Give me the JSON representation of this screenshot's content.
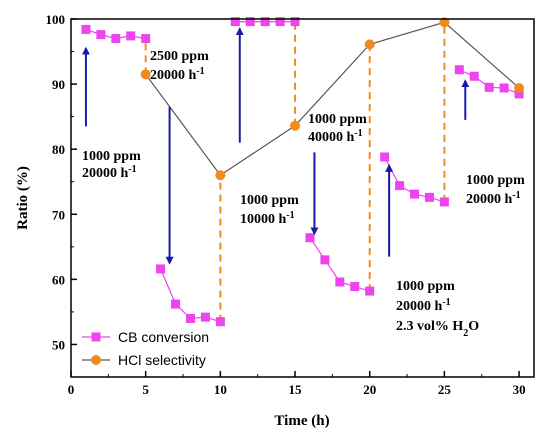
{
  "chart_data": {
    "type": "scatter",
    "title": "",
    "xlabel": "Time (h)",
    "ylabel": "Ratio (%)",
    "xlim": [
      0,
      31
    ],
    "ylim": [
      45,
      100
    ],
    "xticks": [
      0,
      5,
      10,
      15,
      20,
      25,
      30
    ],
    "yticks": [
      50,
      60,
      70,
      80,
      90,
      100
    ],
    "grid": false,
    "legend_position": "bottom-left",
    "series": [
      {
        "name": "CB conversion",
        "color": "#ee44ee",
        "marker": "square",
        "points": [
          [
            1,
            98.4
          ],
          [
            2,
            97.6
          ],
          [
            3,
            97.0
          ],
          [
            4,
            97.4
          ],
          [
            5,
            97.0
          ],
          [
            6,
            61.6
          ],
          [
            7,
            56.2
          ],
          [
            8,
            54.0
          ],
          [
            9,
            54.2
          ],
          [
            10,
            53.5
          ],
          [
            11,
            99.6
          ],
          [
            12,
            99.6
          ],
          [
            13,
            99.6
          ],
          [
            14,
            99.6
          ],
          [
            15,
            99.6
          ],
          [
            16,
            66.4
          ],
          [
            17,
            63.0
          ],
          [
            18,
            59.6
          ],
          [
            19,
            58.9
          ],
          [
            20,
            58.2
          ],
          [
            21,
            78.8
          ],
          [
            22,
            74.4
          ],
          [
            23,
            73.1
          ],
          [
            24,
            72.6
          ],
          [
            25,
            71.9
          ],
          [
            26,
            92.2
          ],
          [
            27,
            91.2
          ],
          [
            28,
            89.5
          ],
          [
            29,
            89.4
          ],
          [
            30,
            88.5
          ]
        ]
      },
      {
        "name": "HCl selectivity",
        "color": "#f28b1e",
        "marker": "circle",
        "points": [
          [
            5,
            91.5
          ],
          [
            10,
            76.0
          ],
          [
            15,
            83.6
          ],
          [
            20,
            96.1
          ],
          [
            25,
            99.5
          ],
          [
            30,
            89.4
          ]
        ]
      }
    ],
    "annotations": [
      {
        "id": "a1",
        "lines": [
          "1000 ppm",
          "20000 h-1"
        ],
        "arrow": {
          "x": 1,
          "y_from": 83.5,
          "y_to": 95.5
        }
      },
      {
        "id": "a2",
        "lines": [
          "2500 ppm",
          "20000 h-1"
        ],
        "arrow": {
          "x": 6.6,
          "y_from": 86.5,
          "y_to": 62.5
        }
      },
      {
        "id": "a3",
        "lines": [
          "1000 ppm",
          "10000 h-1"
        ],
        "arrow": {
          "x": 11.3,
          "y_from": 81.0,
          "y_to": 98.5
        }
      },
      {
        "id": "a4",
        "lines": [
          "1000 ppm",
          "40000 h-1"
        ],
        "arrow": {
          "x": 16.3,
          "y_from": 79.5,
          "y_to": 67.0
        }
      },
      {
        "id": "a5",
        "lines": [
          "1000 ppm",
          "20000 h-1",
          "2.3 vol% H2O"
        ],
        "arrow": {
          "x": 21.3,
          "y_from": 63.5,
          "y_to": 77.5
        }
      },
      {
        "id": "a6",
        "lines": [
          "1000 ppm",
          "20000 h-1"
        ],
        "arrow": {
          "x": 26.4,
          "y_from": 84.5,
          "y_to": 90.5
        }
      }
    ],
    "transition_lines": [
      {
        "x": 5,
        "y_from": 91.5,
        "y_to": 97.0
      },
      {
        "x": 10,
        "y_from": 53.5,
        "y_to": 76.0
      },
      {
        "x": 15,
        "y_from": 83.6,
        "y_to": 99.6
      },
      {
        "x": 20,
        "y_from": 58.2,
        "y_to": 96.1
      },
      {
        "x": 25,
        "y_from": 71.9,
        "y_to": 99.5
      }
    ]
  }
}
